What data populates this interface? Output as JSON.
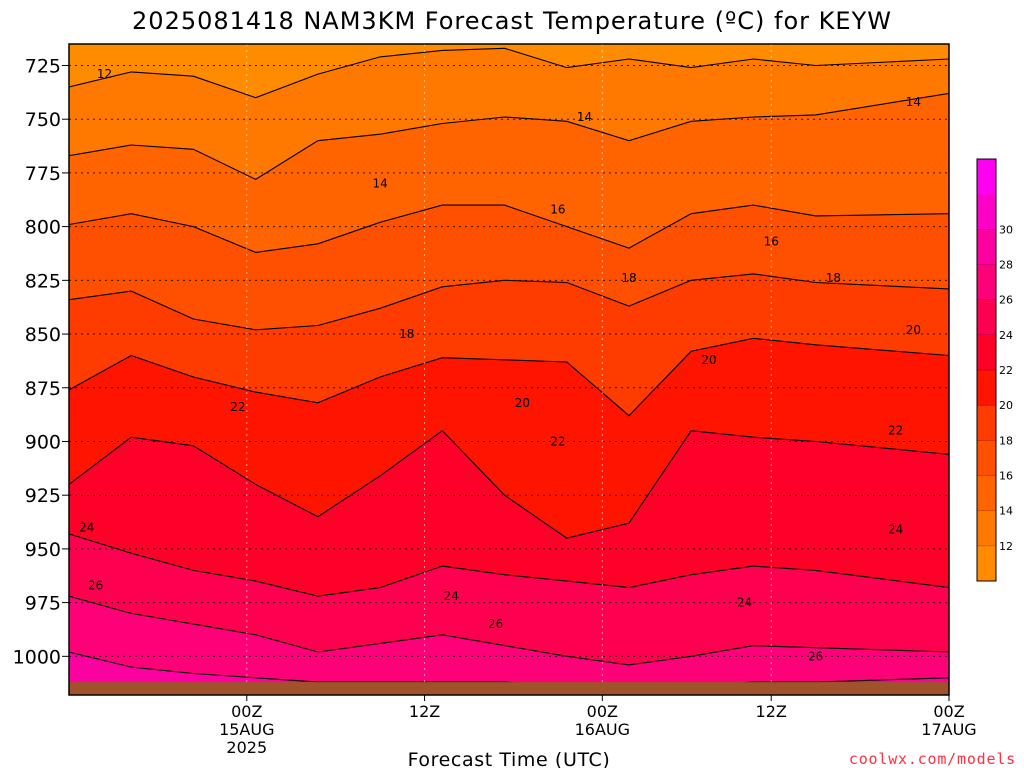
{
  "chart_data": {
    "type": "heatmap",
    "title": "2025081418 NAM3KM Forecast Temperature (ºC) for KEYW",
    "xlabel": "Forecast Time (UTC)",
    "ylabel": "",
    "credit": "coolwx.com/models",
    "y_axis": {
      "unit": "hPa",
      "range": [
        1018,
        715
      ],
      "ticks": [
        725,
        750,
        775,
        800,
        825,
        850,
        875,
        900,
        925,
        950,
        975,
        1000
      ]
    },
    "x_axis": {
      "range_hours": [
        -20,
        79
      ],
      "ticks": [
        {
          "hour": 0,
          "line1": "00Z",
          "line2": "15AUG",
          "line3": "2025"
        },
        {
          "hour": 20,
          "line1": "12Z",
          "line2": "",
          "line3": ""
        },
        {
          "hour": 40,
          "line1": "00Z",
          "line2": "16AUG",
          "line3": ""
        },
        {
          "hour": 59,
          "line1": "12Z",
          "line2": "",
          "line3": ""
        },
        {
          "hour": 79,
          "line1": "00Z",
          "line2": "17AUG",
          "line3": ""
        }
      ]
    },
    "grid": true,
    "colorbar": {
      "placement": "right",
      "levels": [
        10,
        12,
        14,
        16,
        18,
        20,
        22,
        24,
        26,
        28,
        30,
        32
      ],
      "tick_labels": [
        12,
        14,
        16,
        18,
        20,
        22,
        24,
        26,
        28,
        30
      ],
      "colors": [
        "#ff8c00",
        "#ff7800",
        "#ff6400",
        "#ff5000",
        "#ff3c00",
        "#ff1400",
        "#ff0028",
        "#ff0050",
        "#ff0078",
        "#ff00a0",
        "#ff00c8",
        "#ff00f0"
      ]
    },
    "isotherms": [
      {
        "value": 12,
        "pressure": [
          735,
          728,
          730,
          740,
          729,
          721,
          718,
          717,
          726,
          722,
          726,
          722,
          725,
          722
        ]
      },
      {
        "value": 14,
        "pressure": [
          767,
          762,
          764,
          778,
          760,
          757,
          752,
          749,
          751,
          760,
          751,
          749,
          748,
          738
        ]
      },
      {
        "value": 16,
        "pressure": [
          799,
          794,
          800,
          812,
          808,
          798,
          790,
          790,
          800,
          810,
          794,
          790,
          795,
          794
        ]
      },
      {
        "value": 18,
        "pressure": [
          834,
          830,
          843,
          848,
          846,
          838,
          828,
          825,
          826,
          837,
          825,
          822,
          826,
          829
        ]
      },
      {
        "value": 20,
        "pressure": [
          876,
          860,
          870,
          877,
          882,
          870,
          861,
          862,
          863,
          888,
          858,
          852,
          855,
          860
        ]
      },
      {
        "value": 22,
        "pressure": [
          920,
          898,
          902,
          920,
          935,
          916,
          895,
          925,
          945,
          938,
          895,
          898,
          900,
          906
        ]
      },
      {
        "value": 24,
        "pressure": [
          943,
          952,
          960,
          965,
          972,
          968,
          958,
          962,
          965,
          968,
          962,
          958,
          960,
          968
        ]
      },
      {
        "value": 26,
        "pressure": [
          972,
          980,
          985,
          990,
          998,
          994,
          990,
          995,
          1000,
          1004,
          1000,
          995,
          996,
          998
        ]
      },
      {
        "value": 28,
        "pressure": [
          998,
          1005,
          1008,
          1010,
          1012,
          1012,
          1012,
          1012,
          1014,
          1018,
          1014,
          1012,
          1012,
          1010
        ]
      }
    ],
    "isotherm_x_hours": [
      -20,
      -13,
      -6,
      1,
      8,
      15,
      22,
      29,
      36,
      43,
      50,
      57,
      64,
      79
    ],
    "contour_labels": [
      {
        "text": "12",
        "hour": -16,
        "pressure": 729
      },
      {
        "text": "14",
        "hour": 38,
        "pressure": 749
      },
      {
        "text": "14",
        "hour": 75,
        "pressure": 742
      },
      {
        "text": "14",
        "hour": 15,
        "pressure": 780
      },
      {
        "text": "16",
        "hour": 35,
        "pressure": 792
      },
      {
        "text": "16",
        "hour": 59,
        "pressure": 807
      },
      {
        "text": "18",
        "hour": 43,
        "pressure": 824
      },
      {
        "text": "18",
        "hour": 66,
        "pressure": 824
      },
      {
        "text": "18",
        "hour": 18,
        "pressure": 850
      },
      {
        "text": "20",
        "hour": 75,
        "pressure": 848
      },
      {
        "text": "20",
        "hour": 52,
        "pressure": 862
      },
      {
        "text": "20",
        "hour": 31,
        "pressure": 882
      },
      {
        "text": "22",
        "hour": -1,
        "pressure": 884
      },
      {
        "text": "22",
        "hour": 35,
        "pressure": 900
      },
      {
        "text": "22",
        "hour": 73,
        "pressure": 895
      },
      {
        "text": "24",
        "hour": -18,
        "pressure": 940
      },
      {
        "text": "24",
        "hour": 73,
        "pressure": 941
      },
      {
        "text": "24",
        "hour": 23,
        "pressure": 972
      },
      {
        "text": "24",
        "hour": 56,
        "pressure": 975
      },
      {
        "text": "26",
        "hour": -17,
        "pressure": 967
      },
      {
        "text": "26",
        "hour": 28,
        "pressure": 985
      },
      {
        "text": "26",
        "hour": 64,
        "pressure": 1000
      }
    ],
    "surface": {
      "pressure": 1012,
      "color": "#a0522d"
    }
  }
}
